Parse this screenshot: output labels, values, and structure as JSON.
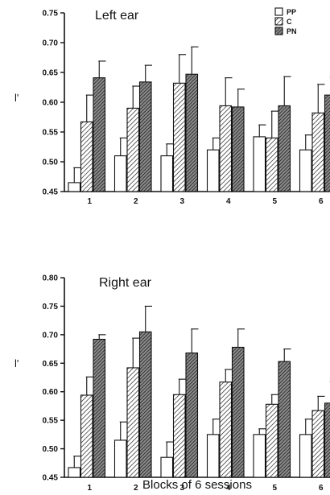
{
  "chart_data": [
    {
      "type": "bar",
      "title": "Left ear",
      "ylabel": "l'",
      "xlabel": "",
      "ylim": [
        0.45,
        0.75
      ],
      "yticks": [
        "0.45",
        "0.50",
        "0.55",
        "0.60",
        "0.65",
        "0.70",
        "0.75"
      ],
      "categories": [
        "1",
        "2",
        "3",
        "4",
        "5",
        "6"
      ],
      "legend": {
        "position": "top-right"
      },
      "series": [
        {
          "name": "PP",
          "pattern": "open",
          "values": [
            0.465,
            0.51,
            0.51,
            0.52,
            0.542,
            0.52
          ],
          "errors": [
            0.025,
            0.03,
            0.02,
            0.02,
            0.02,
            0.025
          ]
        },
        {
          "name": "C",
          "pattern": "hatched",
          "values": [
            0.567,
            0.59,
            0.632,
            0.594,
            0.54,
            0.582
          ],
          "errors": [
            0.045,
            0.037,
            0.048,
            0.047,
            0.045,
            0.048
          ]
        },
        {
          "name": "PN",
          "pattern": "dark-hatched",
          "values": [
            0.641,
            0.634,
            0.647,
            0.592,
            0.594,
            0.612
          ],
          "errors": [
            0.028,
            0.028,
            0.046,
            0.03,
            0.049,
            0.03
          ]
        }
      ]
    },
    {
      "type": "bar",
      "title": "Right ear",
      "ylabel": "l'",
      "xlabel": "Blocks of 6 sessions",
      "ylim": [
        0.45,
        0.8
      ],
      "yticks": [
        "0.45",
        "0.50",
        "0.55",
        "0.60",
        "0.65",
        "0.70",
        "0.75",
        "0.80"
      ],
      "categories": [
        "1",
        "2",
        "3",
        "4",
        "5",
        "6"
      ],
      "series": [
        {
          "name": "PP",
          "pattern": "open",
          "values": [
            0.467,
            0.515,
            0.485,
            0.525,
            0.525,
            0.525
          ],
          "errors": [
            0.02,
            0.032,
            0.027,
            0.027,
            0.01,
            0.027
          ]
        },
        {
          "name": "C",
          "pattern": "hatched",
          "values": [
            0.594,
            0.642,
            0.595,
            0.617,
            0.578,
            0.567
          ],
          "errors": [
            0.032,
            0.052,
            0.027,
            0.022,
            0.017,
            0.025
          ]
        },
        {
          "name": "PN",
          "pattern": "dark-hatched",
          "values": [
            0.692,
            0.705,
            0.668,
            0.678,
            0.653,
            0.58
          ],
          "errors": [
            0.008,
            0.045,
            0.042,
            0.032,
            0.022,
            0.038
          ]
        }
      ]
    }
  ]
}
